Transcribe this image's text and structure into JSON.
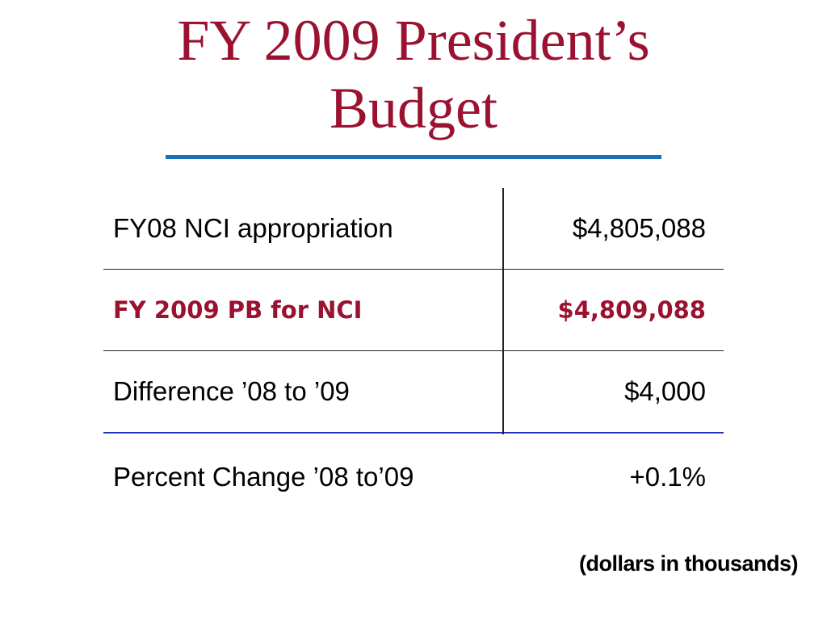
{
  "title": {
    "line1": "FY 2009 President’s",
    "line2": "Budget"
  },
  "colors": {
    "title": "#9b1230",
    "title_rule": "#1a6fb5",
    "highlight_row": "#9b1230",
    "blue_separator": "#2433b8"
  },
  "table": {
    "rows": [
      {
        "label": "FY08 NCI appropriation",
        "value": "$4,805,088",
        "highlight": false
      },
      {
        "label": "FY 2009 PB for NCI",
        "value": "$4,809,088",
        "highlight": true
      },
      {
        "label": "Difference ’08 to ’09",
        "value": "$4,000",
        "highlight": false
      },
      {
        "label": "Percent Change ’08 to’09",
        "value": "+0.1%",
        "highlight": false
      }
    ]
  },
  "note": "(dollars in thousands)"
}
